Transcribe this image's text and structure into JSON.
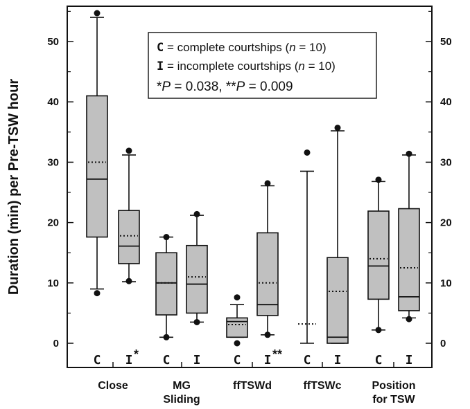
{
  "chart_data": {
    "type": "box",
    "ylabel": "Duration (min) per Pre-TSW hour",
    "ylim": [
      -2,
      56
    ],
    "yticks": [
      0,
      10,
      20,
      30,
      40,
      50
    ],
    "categories": [
      "Close",
      "MG\nSliding",
      "ffTSWd",
      "ffTSWc",
      "Position\nfor TSW"
    ],
    "series": [
      {
        "name": "complete courtships",
        "code": "C",
        "boxes": [
          {
            "category": "Close",
            "whisker_low": 9.0,
            "q1": 17.6,
            "median": 27.2,
            "q3": 41.0,
            "whisker_high": 54.0,
            "mean": 30.0,
            "outliers": [
              54.7,
              8.3
            ],
            "sig": ""
          },
          {
            "category": "MG Sliding",
            "whisker_low": 1.0,
            "q1": 4.7,
            "median": 10.0,
            "q3": 15.0,
            "whisker_high": 17.6,
            "mean": 10.0,
            "outliers": [
              17.6,
              1.0
            ],
            "sig": ""
          },
          {
            "category": "ffTSWd",
            "whisker_low": 1.0,
            "q1": 1.0,
            "median": 3.6,
            "q3": 4.2,
            "whisker_high": 6.4,
            "mean": 3.1,
            "outliers": [
              7.6,
              0.0
            ],
            "sig": ""
          },
          {
            "category": "ffTSWc",
            "whisker_low": 0.0,
            "q1": 0.0,
            "median": 0.0,
            "q3": 0.0,
            "whisker_high": 28.5,
            "mean": 3.2,
            "outliers": [
              31.6
            ],
            "sig": ""
          },
          {
            "category": "Position for TSW",
            "whisker_low": 2.2,
            "q1": 7.3,
            "median": 12.8,
            "q3": 21.9,
            "whisker_high": 26.8,
            "mean": 14.0,
            "outliers": [
              27.1,
              2.2
            ],
            "sig": ""
          }
        ]
      },
      {
        "name": "incomplete courtships",
        "code": "I",
        "boxes": [
          {
            "category": "Close",
            "whisker_low": 10.2,
            "q1": 13.2,
            "median": 16.1,
            "q3": 22.0,
            "whisker_high": 31.2,
            "mean": 17.8,
            "outliers": [
              31.9,
              10.3
            ],
            "sig": "*"
          },
          {
            "category": "MG Sliding",
            "whisker_low": 3.5,
            "q1": 5.0,
            "median": 9.8,
            "q3": 16.2,
            "whisker_high": 21.2,
            "mean": 11.0,
            "outliers": [
              21.4,
              3.5
            ],
            "sig": ""
          },
          {
            "category": "ffTSWd",
            "whisker_low": 1.4,
            "q1": 4.6,
            "median": 6.4,
            "q3": 18.3,
            "whisker_high": 26.1,
            "mean": 10.0,
            "outliers": [
              26.5,
              1.4
            ],
            "sig": "**"
          },
          {
            "category": "ffTSWc",
            "whisker_low": 0.0,
            "q1": 0.0,
            "median": 1.0,
            "q3": 14.2,
            "whisker_high": 35.2,
            "mean": 8.6,
            "outliers": [
              35.7
            ],
            "sig": ""
          },
          {
            "category": "Position for TSW",
            "whisker_low": 4.2,
            "q1": 5.4,
            "median": 7.7,
            "q3": 22.3,
            "whisker_high": 31.2,
            "mean": 12.5,
            "outliers": [
              31.4,
              4.0
            ],
            "sig": ""
          }
        ]
      }
    ],
    "legend": {
      "line1_code": "C",
      "line1_text": " = complete courtships (",
      "line1_n": "n",
      "line1_tail": " = 10)",
      "line2_code": "I",
      "line2_text": " = incomplete courtships (",
      "line2_n": "n",
      "line2_tail": " = 10)",
      "line3_star1": "*",
      "line3_p1": "P",
      "line3_val1": " = 0.038, ",
      "line3_star2": "**",
      "line3_p2": "P",
      "line3_val2": " = 0.009"
    },
    "colors": {
      "box_fill": "#c0c0c0",
      "line": "#111111"
    }
  }
}
